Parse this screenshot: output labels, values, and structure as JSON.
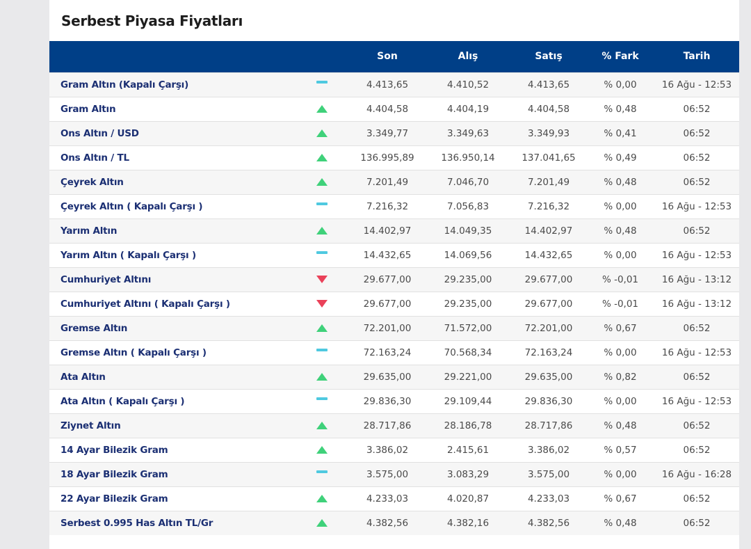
{
  "title": "Serbest Piyasa Fiyatları",
  "headers": {
    "name": "",
    "dir": "",
    "son": "Son",
    "alis": "Alış",
    "satis": "Satış",
    "fark": "% Fark",
    "tarih": "Tarih"
  },
  "rows": [
    {
      "name": "Gram Altın (Kapalı Çarşı)",
      "dir": "flat",
      "son": "4.413,65",
      "alis": "4.410,52",
      "satis": "4.413,65",
      "fark": "% 0,00",
      "tarih": "16 Ağu - 12:53"
    },
    {
      "name": "Gram Altın",
      "dir": "up",
      "son": "4.404,58",
      "alis": "4.404,19",
      "satis": "4.404,58",
      "fark": "% 0,48",
      "tarih": "06:52"
    },
    {
      "name": "Ons Altın / USD",
      "dir": "up",
      "son": "3.349,77",
      "alis": "3.349,63",
      "satis": "3.349,93",
      "fark": "% 0,41",
      "tarih": "06:52"
    },
    {
      "name": "Ons Altın / TL",
      "dir": "up",
      "son": "136.995,89",
      "alis": "136.950,14",
      "satis": "137.041,65",
      "fark": "% 0,49",
      "tarih": "06:52"
    },
    {
      "name": "Çeyrek Altın",
      "dir": "up",
      "son": "7.201,49",
      "alis": "7.046,70",
      "satis": "7.201,49",
      "fark": "% 0,48",
      "tarih": "06:52"
    },
    {
      "name": "Çeyrek Altın ( Kapalı Çarşı )",
      "dir": "flat",
      "son": "7.216,32",
      "alis": "7.056,83",
      "satis": "7.216,32",
      "fark": "% 0,00",
      "tarih": "16 Ağu - 12:53"
    },
    {
      "name": "Yarım Altın",
      "dir": "up",
      "son": "14.402,97",
      "alis": "14.049,35",
      "satis": "14.402,97",
      "fark": "% 0,48",
      "tarih": "06:52"
    },
    {
      "name": "Yarım Altın ( Kapalı Çarşı )",
      "dir": "flat",
      "son": "14.432,65",
      "alis": "14.069,56",
      "satis": "14.432,65",
      "fark": "% 0,00",
      "tarih": "16 Ağu - 12:53"
    },
    {
      "name": "Cumhuriyet Altını",
      "dir": "down",
      "son": "29.677,00",
      "alis": "29.235,00",
      "satis": "29.677,00",
      "fark": "% -0,01",
      "tarih": "16 Ağu - 13:12"
    },
    {
      "name": "Cumhuriyet Altını ( Kapalı Çarşı )",
      "dir": "down",
      "son": "29.677,00",
      "alis": "29.235,00",
      "satis": "29.677,00",
      "fark": "% -0,01",
      "tarih": "16 Ağu - 13:12"
    },
    {
      "name": "Gremse Altın",
      "dir": "up",
      "son": "72.201,00",
      "alis": "71.572,00",
      "satis": "72.201,00",
      "fark": "% 0,67",
      "tarih": "06:52"
    },
    {
      "name": "Gremse Altın ( Kapalı Çarşı )",
      "dir": "flat",
      "son": "72.163,24",
      "alis": "70.568,34",
      "satis": "72.163,24",
      "fark": "% 0,00",
      "tarih": "16 Ağu - 12:53"
    },
    {
      "name": "Ata Altın",
      "dir": "up",
      "son": "29.635,00",
      "alis": "29.221,00",
      "satis": "29.635,00",
      "fark": "% 0,82",
      "tarih": "06:52"
    },
    {
      "name": "Ata Altın ( Kapalı Çarşı )",
      "dir": "flat",
      "son": "29.836,30",
      "alis": "29.109,44",
      "satis": "29.836,30",
      "fark": "% 0,00",
      "tarih": "16 Ağu - 12:53"
    },
    {
      "name": "Ziynet Altın",
      "dir": "up",
      "son": "28.717,86",
      "alis": "28.186,78",
      "satis": "28.717,86",
      "fark": "% 0,48",
      "tarih": "06:52"
    },
    {
      "name": "14 Ayar Bilezik Gram",
      "dir": "up",
      "son": "3.386,02",
      "alis": "2.415,61",
      "satis": "3.386,02",
      "fark": "% 0,57",
      "tarih": "06:52"
    },
    {
      "name": "18 Ayar Bilezik Gram",
      "dir": "flat",
      "son": "3.575,00",
      "alis": "3.083,29",
      "satis": "3.575,00",
      "fark": "% 0,00",
      "tarih": "16 Ağu - 16:28"
    },
    {
      "name": "22 Ayar Bilezik Gram",
      "dir": "up",
      "son": "4.233,03",
      "alis": "4.020,87",
      "satis": "4.233,03",
      "fark": "% 0,67",
      "tarih": "06:52"
    },
    {
      "name": "Serbest 0.995 Has Altın TL/Gr",
      "dir": "up",
      "son": "4.382,56",
      "alis": "4.382,16",
      "satis": "4.382,56",
      "fark": "% 0,48",
      "tarih": "06:52"
    }
  ],
  "colors": {
    "header_bg": "#003f87",
    "up": "#3fd17a",
    "down": "#ea4159",
    "flat": "#4fc9e0",
    "name_link": "#1b2f73"
  }
}
